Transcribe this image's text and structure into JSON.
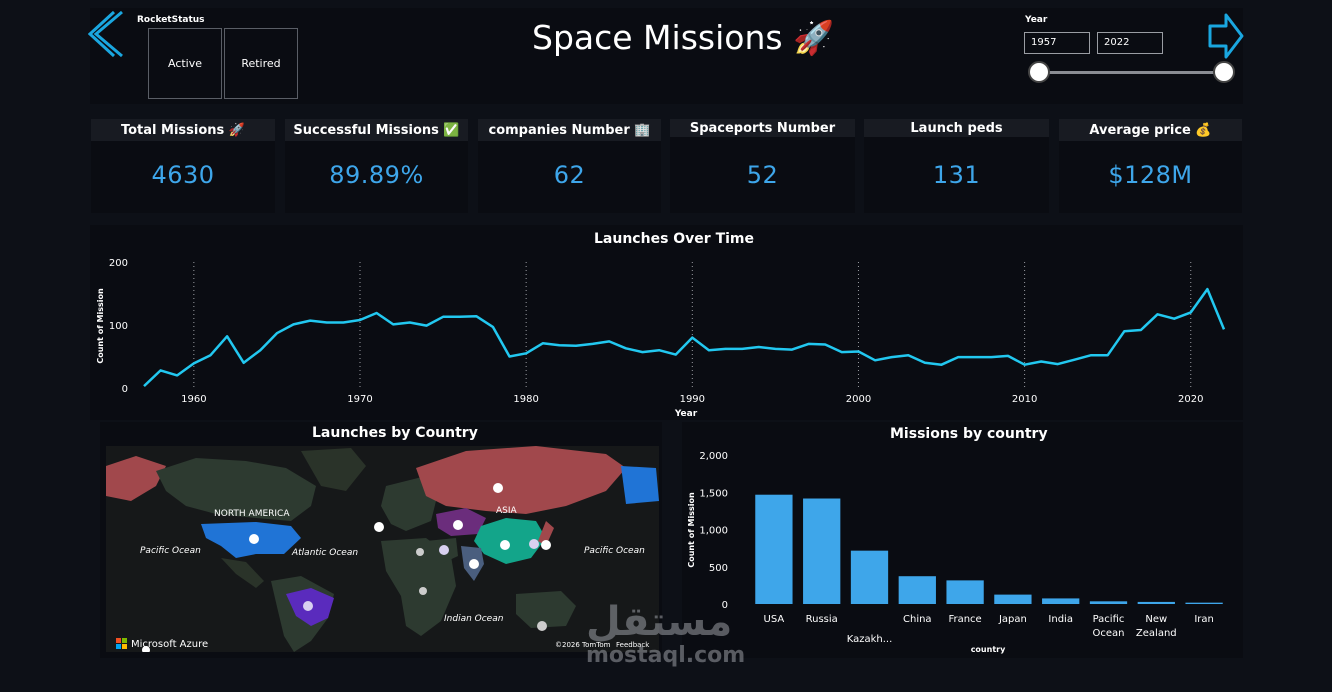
{
  "header": {
    "title": "Space Missions 🚀",
    "slicer_title": "RocketStatus",
    "slicer_options": [
      "Active",
      "Retired"
    ],
    "year_label": "Year",
    "year_from": "1957",
    "year_to": "2022"
  },
  "kpis": [
    {
      "label": "Total Missions 🚀",
      "value": "4630"
    },
    {
      "label": "Successful Missions ✅",
      "value": "89.89%"
    },
    {
      "label": "companies Number 🏢",
      "value": "62"
    },
    {
      "label": "Spaceports Number",
      "value": "52"
    },
    {
      "label": "Launch peds",
      "value": "131"
    },
    {
      "label": "Average price 💰",
      "value": "$128M"
    }
  ],
  "map": {
    "title": "Launches by Country",
    "labels": [
      "NORTH AMERICA",
      "ASIA",
      "Pacific Ocean",
      "Atlantic Ocean",
      "Pacific Ocean",
      "Indian Ocean"
    ],
    "brand": "Microsoft Azure",
    "copyright": "©2026 TomTom",
    "feedback": "Feedback"
  },
  "watermark": {
    "arabic": "مستقل",
    "latin": "mostaql.com"
  },
  "colors": {
    "accent": "#3ea6ea",
    "line": "#22c8f0",
    "nav": "#1aa7e0"
  },
  "chart_data": [
    {
      "type": "line",
      "title": "Launches Over Time",
      "xlabel": "Year",
      "ylabel": "Count of Mission",
      "xlim": [
        1957,
        2022
      ],
      "ylim": [
        0,
        200
      ],
      "yticks": [
        0,
        100,
        200
      ],
      "xticks": [
        1960,
        1970,
        1980,
        1990,
        2000,
        2010,
        2020
      ],
      "x": [
        1957,
        1958,
        1959,
        1960,
        1961,
        1962,
        1963,
        1964,
        1965,
        1966,
        1967,
        1968,
        1969,
        1970,
        1971,
        1972,
        1973,
        1974,
        1975,
        1976,
        1977,
        1978,
        1979,
        1980,
        1981,
        1982,
        1983,
        1984,
        1985,
        1986,
        1987,
        1988,
        1989,
        1990,
        1991,
        1992,
        1993,
        1994,
        1995,
        1996,
        1997,
        1998,
        1999,
        2000,
        2001,
        2002,
        2003,
        2004,
        2005,
        2006,
        2007,
        2008,
        2009,
        2010,
        2011,
        2012,
        2013,
        2014,
        2015,
        2016,
        2017,
        2018,
        2019,
        2020,
        2021,
        2022
      ],
      "values": [
        3,
        28,
        20,
        39,
        52,
        82,
        40,
        60,
        87,
        101,
        107,
        104,
        104,
        108,
        119,
        101,
        104,
        99,
        113,
        113,
        114,
        97,
        50,
        55,
        71,
        68,
        67,
        70,
        74,
        63,
        57,
        60,
        53,
        80,
        60,
        62,
        62,
        65,
        62,
        61,
        70,
        69,
        57,
        58,
        44,
        49,
        52,
        40,
        37,
        49,
        49,
        49,
        51,
        37,
        42,
        38,
        45,
        52,
        52,
        90,
        92,
        117,
        110,
        120,
        157,
        93
      ]
    },
    {
      "type": "bar",
      "title": "Missions by country",
      "xlabel": "country",
      "ylabel": "Count of Mission",
      "ylim": [
        0,
        2000
      ],
      "yticks": [
        "0",
        "500",
        "1,000",
        "1,500",
        "2,000"
      ],
      "categories": [
        "USA",
        "Russia",
        "Kazakh...",
        "China",
        "France",
        "Japan",
        "India",
        "Pacific Ocean",
        "New Zealand",
        "Iran"
      ],
      "values": [
        1467,
        1416,
        716,
        373,
        317,
        126,
        75,
        36,
        28,
        18
      ]
    }
  ]
}
